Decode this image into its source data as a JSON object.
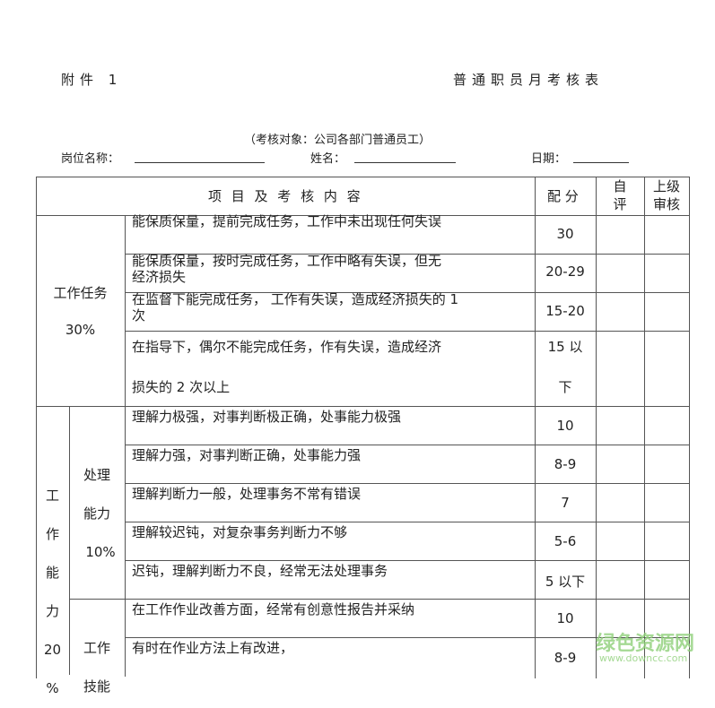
{
  "header": {
    "attachment": "附件 1",
    "title": "普通职员月考核表",
    "subject": "（考核对象：公司各部门普通员工）",
    "position_label": "岗位名称：",
    "name_label": "姓名：",
    "date_label": "日期："
  },
  "table": {
    "headers": {
      "content": "项 目 及 考 核 内 容",
      "score": "配 分",
      "self": [
        "自",
        "评"
      ],
      "superior": [
        "上级",
        "审核"
      ]
    },
    "section1": {
      "title": "工作任务",
      "weight": "30%",
      "rows": [
        {
          "text": [
            "能保质保量，提前完成任务，工作中未出现任何失误"
          ],
          "score": [
            "30"
          ]
        },
        {
          "text": [
            "能保质保量，按时完成任务，工作中略有失误，但无",
            "经济损失"
          ],
          "score": [
            "20-29"
          ]
        },
        {
          "text": [
            "在监督下能完成任务，  工作有失误，造成经济损失的  1",
            "次"
          ],
          "score": [
            "15-20"
          ]
        },
        {
          "text": [
            "在指导下，偶尔不能完成任务，作有失误，造成经济",
            "损失的 2 次以上"
          ],
          "score": [
            "15 以",
            "下"
          ]
        }
      ]
    },
    "section2": {
      "title": [
        "工",
        "作",
        "能",
        "力",
        "20",
        "%"
      ],
      "sub1": {
        "title": [
          "处理",
          "能力",
          "10%"
        ],
        "rows": [
          {
            "text": "理解力极强，对事判断极正确，处事能力极强",
            "score": "10"
          },
          {
            "text": "理解力强，对事判断正确，处事能力强",
            "score": "8-9"
          },
          {
            "text": "理解判断力一般，处理事务不常有错误",
            "score": "7"
          },
          {
            "text": "理解较迟钝，对复杂事务判断力不够",
            "score": "5-6"
          },
          {
            "text": "迟钝，理解判断力不良，经常无法处理事务",
            "score": "5 以下"
          }
        ]
      },
      "sub2": {
        "title": [
          "工作",
          "技能"
        ],
        "rows": [
          {
            "text": "在工作作业改善方面，经常有创意性报告并采纳",
            "score": "10"
          },
          {
            "text": "有时在作业方法上有改进，",
            "score": "8-9"
          }
        ]
      }
    }
  },
  "watermark": {
    "brand": "绿色资源网",
    "url": "www.downcc.com"
  }
}
